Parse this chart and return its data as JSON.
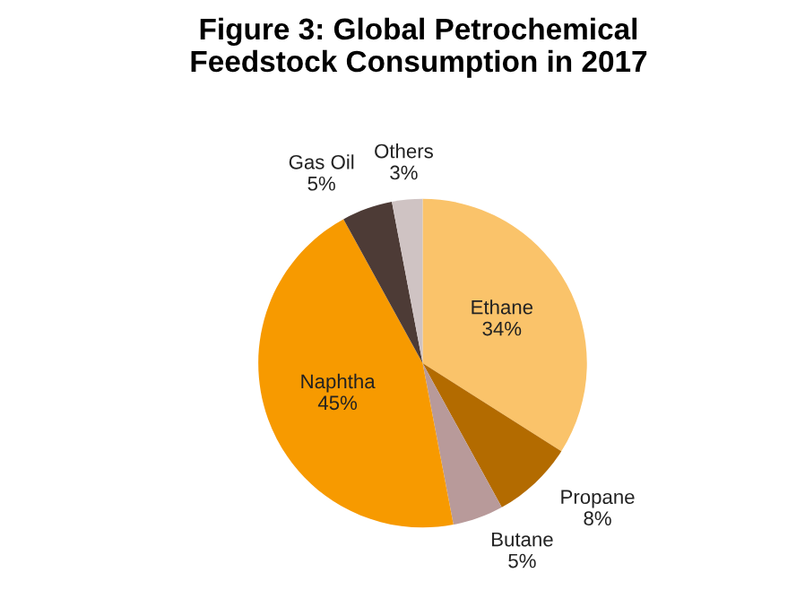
{
  "chart_data": {
    "type": "pie",
    "title": "Figure 3: Global Petrochemical\nFeedstock Consumption in 2017",
    "categories": [
      "Ethane",
      "Propane",
      "Butane",
      "Naphtha",
      "Gas Oil",
      "Others"
    ],
    "values": [
      34,
      8,
      5,
      45,
      5,
      3
    ],
    "value_labels": [
      "34%",
      "8%",
      "5%",
      "45%",
      "5%",
      "3%"
    ],
    "colors": [
      "#fac36a",
      "#b36b00",
      "#b89a9a",
      "#f79a00",
      "#4d3b36",
      "#cfc3c3"
    ]
  }
}
